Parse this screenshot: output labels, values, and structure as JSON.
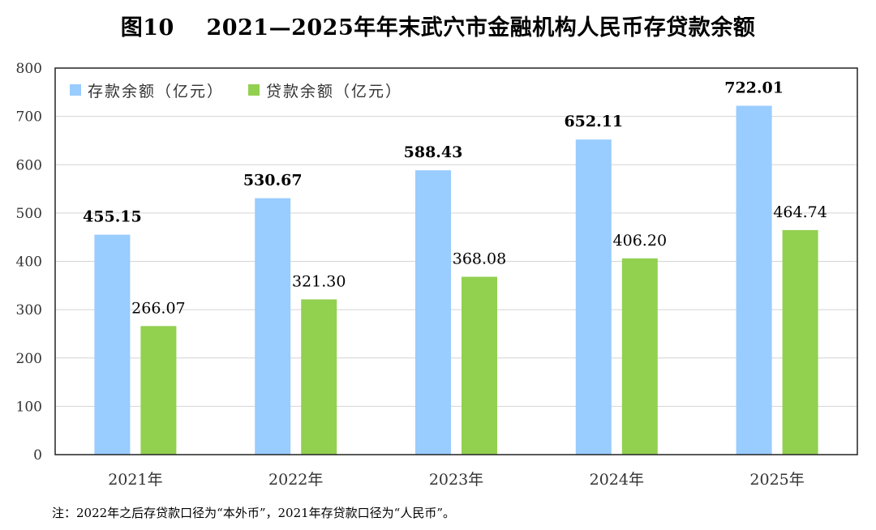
{
  "title": "图10    2021—2025年年末武穴市金融机构人民币存贷款余额",
  "note": "注：2022年之后存贷款口径为“本外币”，2021年存贷款口径为“人民币”。",
  "chart_data": {
    "type": "bar",
    "categories": [
      "2021年",
      "2022年",
      "2023年",
      "2024年",
      "2025年"
    ],
    "series": [
      {
        "name": "存款余额（亿元）",
        "values": [
          455.15,
          530.67,
          588.43,
          652.11,
          722.01
        ],
        "color": "#99CCFF"
      },
      {
        "name": "贷款余额（亿元）",
        "values": [
          266.07,
          321.3,
          368.08,
          406.2,
          464.74
        ],
        "color": "#92D050"
      }
    ],
    "data_labels": [
      [
        "455.15",
        "530.67",
        "588.43",
        "652.11",
        "722.01"
      ],
      [
        "266.07",
        "321.30",
        "368.08",
        "406.20",
        "464.74"
      ]
    ],
    "yticks": [
      "0",
      "100",
      "200",
      "300",
      "400",
      "500",
      "600",
      "700",
      "800"
    ],
    "ylim": [
      0,
      800
    ],
    "grid": true,
    "legend": "top-left"
  }
}
